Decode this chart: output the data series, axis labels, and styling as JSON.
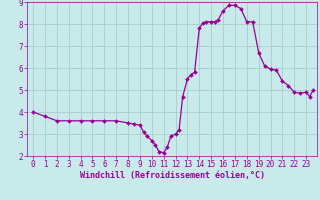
{
  "x": [
    0,
    1,
    2,
    3,
    4,
    5,
    6,
    7,
    8,
    8.5,
    9,
    9.3,
    9.6,
    10,
    10.3,
    10.6,
    11,
    11.3,
    11.6,
    12,
    12.3,
    12.6,
    13,
    13.3,
    13.6,
    14,
    14.3,
    14.6,
    15,
    15.3,
    15.6,
    16,
    16.5,
    17,
    17.5,
    18,
    18.5,
    19,
    19.5,
    20,
    20.5,
    21,
    21.5,
    22,
    22.5,
    23,
    23.3,
    23.6
  ],
  "y": [
    4.0,
    3.8,
    3.6,
    3.6,
    3.6,
    3.6,
    3.6,
    3.6,
    3.5,
    3.45,
    3.4,
    3.1,
    2.9,
    2.7,
    2.5,
    2.2,
    2.15,
    2.4,
    2.9,
    3.0,
    3.2,
    4.7,
    5.5,
    5.7,
    5.8,
    7.8,
    8.05,
    8.1,
    8.1,
    8.1,
    8.2,
    8.6,
    8.85,
    8.85,
    8.7,
    8.1,
    8.1,
    6.7,
    6.1,
    5.95,
    5.9,
    5.4,
    5.2,
    4.9,
    4.85,
    4.9,
    4.7,
    5.0
  ],
  "line_color": "#990099",
  "marker": "D",
  "markersize": 2.0,
  "linewidth": 0.9,
  "bg_color": "#c8eaea",
  "grid_color": "#aacccc",
  "xlabel": "Windchill (Refroidissement éolien,°C)",
  "xlabel_color": "#990099",
  "xlabel_fontsize": 6.0,
  "tick_color": "#990099",
  "tick_fontsize": 5.5,
  "xlim": [
    -0.5,
    23.9
  ],
  "ylim": [
    2.0,
    9.0
  ],
  "yticks": [
    2,
    3,
    4,
    5,
    6,
    7,
    8,
    9
  ],
  "xticks": [
    0,
    1,
    2,
    3,
    4,
    5,
    6,
    7,
    8,
    9,
    10,
    11,
    12,
    13,
    14,
    15,
    16,
    17,
    18,
    19,
    20,
    21,
    22,
    23
  ]
}
